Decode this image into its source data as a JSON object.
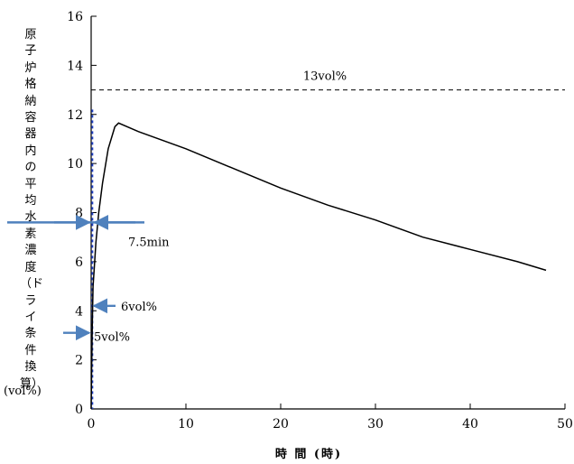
{
  "chart_data": {
    "type": "line",
    "title": "",
    "ylabel": "原子炉格納容器内の平均水素濃度（ドライ条件換算）",
    "ylabel_unit": "(vol%)",
    "xlabel": "時 間 (時)",
    "xlim": [
      0,
      50
    ],
    "ylim": [
      0,
      16
    ],
    "xticks": [
      0,
      10,
      20,
      30,
      40,
      50
    ],
    "yticks": [
      0,
      2,
      4,
      6,
      8,
      10,
      12,
      14,
      16
    ],
    "grid": false,
    "series": [
      {
        "x": [
          0,
          0.05,
          0.125,
          0.2,
          0.3,
          0.5,
          0.8,
          1.2,
          1.8,
          2.5,
          2.9,
          5,
          10,
          15,
          20,
          25,
          30,
          35,
          40,
          45,
          48
        ],
        "y": [
          0,
          1.5,
          3.5,
          5.0,
          5.6,
          6.8,
          8.0,
          9.2,
          10.6,
          11.5,
          11.65,
          11.3,
          10.6,
          9.8,
          9.0,
          8.3,
          7.7,
          7.0,
          6.5,
          6.0,
          5.65
        ]
      }
    ],
    "reference_line": {
      "y": 13,
      "label": "13vol%",
      "style": "dashed"
    },
    "vertical_marker": {
      "x": 0.125,
      "style": "dotted-blue"
    },
    "annotations": [
      {
        "text": "7.5min",
        "y": 7.6
      },
      {
        "text": "6vol%",
        "y": 4.2
      },
      {
        "text": "5vol%",
        "y": 3.1
      }
    ]
  },
  "colors": {
    "curve": "#000000",
    "arrow": "#4f81bd",
    "marker": "#1f3fbf"
  }
}
